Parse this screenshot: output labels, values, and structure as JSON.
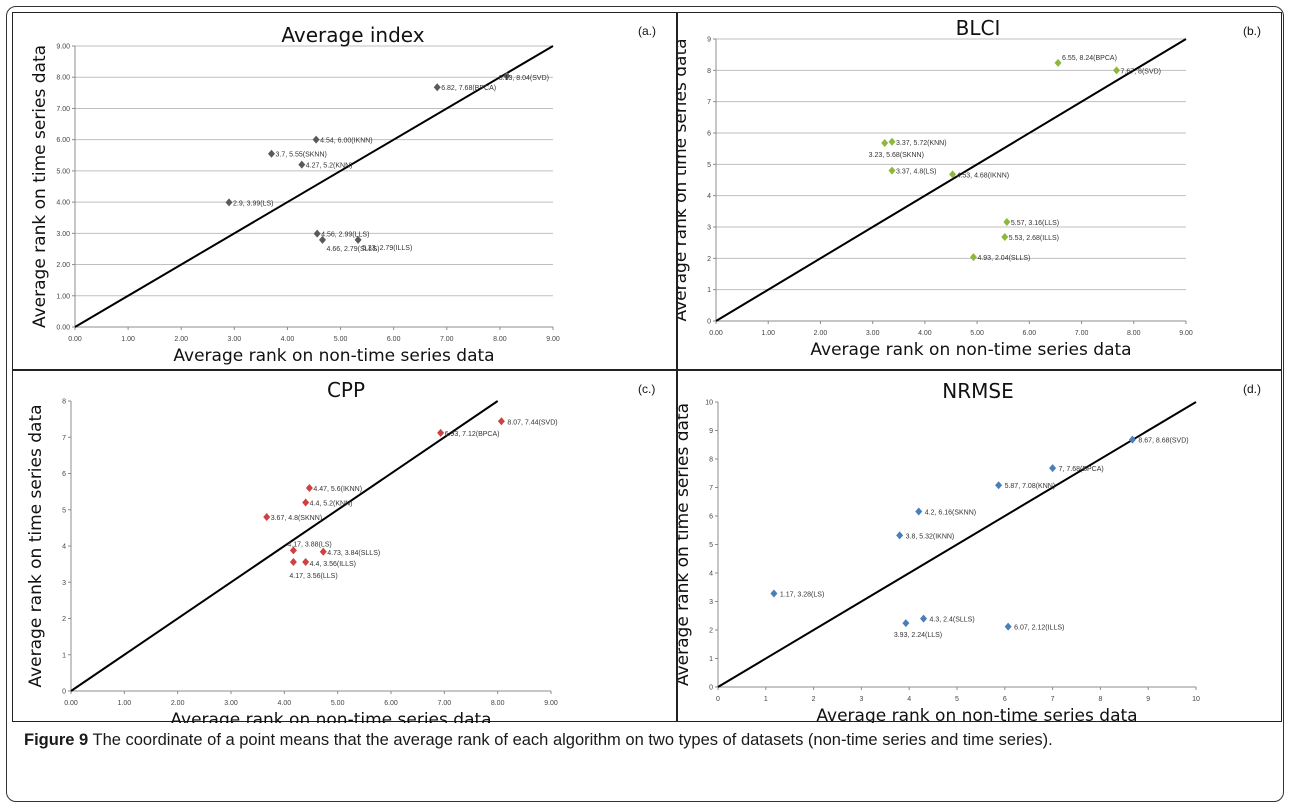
{
  "figure": {
    "caption_label": "Figure 9",
    "caption_text": "The coordinate of a point means that the average rank of each algorithm on two types of datasets (non-time series and time series)."
  },
  "colors": {
    "average_index": "#5a5a5a",
    "blci": "#8db83a",
    "cpp": "#d04040",
    "nrmse": "#4a7ebb",
    "diagonal": "#000000",
    "grid": "#bfbfbf"
  },
  "chart_data": [
    {
      "type": "scatter",
      "panel_tag": "(a.)",
      "title": "Average  index",
      "xlabel": "Average rank on non-time series data",
      "ylabel": "Average rank on time series data",
      "xlim": [
        0,
        9
      ],
      "ylim": [
        0,
        9
      ],
      "x_ticks": [
        "0.00",
        "1.00",
        "2.00",
        "3.00",
        "4.00",
        "5.00",
        "6.00",
        "7.00",
        "8.00",
        "9.00"
      ],
      "y_ticks": [
        "0.00",
        "1.00",
        "2.00",
        "3.00",
        "4.00",
        "5.00",
        "6.00",
        "7.00",
        "8.00",
        "9.00"
      ],
      "grid": "horizontal",
      "reference_line": "y = x",
      "points": [
        {
          "x": 8.13,
          "y": 8.04,
          "label": "8.13, 8.04(SVD)"
        },
        {
          "x": 6.82,
          "y": 7.68,
          "label": "6.82, 7.68(BPCA)"
        },
        {
          "x": 4.54,
          "y": 6.0,
          "label": "4.54, 6.00(IKNN)"
        },
        {
          "x": 3.7,
          "y": 5.55,
          "label": "3.7, 5.55(SKNN)"
        },
        {
          "x": 4.27,
          "y": 5.2,
          "label": "4.27, 5.2(KNN)"
        },
        {
          "x": 2.9,
          "y": 3.99,
          "label": "2.9, 3.99(LS)"
        },
        {
          "x": 4.56,
          "y": 2.99,
          "label": "4.56, 2.99(LLS)"
        },
        {
          "x": 5.33,
          "y": 2.79,
          "label": "5.33, 2.79(ILLS)"
        },
        {
          "x": 4.66,
          "y": 2.79,
          "label": "4.66, 2.79(SLLS)"
        }
      ]
    },
    {
      "type": "scatter",
      "panel_tag": "(b.)",
      "title": "BLCI",
      "xlabel": "Average rank on non-time series data",
      "ylabel": "Average rank on time series data",
      "xlim": [
        0,
        9
      ],
      "ylim": [
        0,
        9
      ],
      "x_ticks": [
        "0.00",
        "1.00",
        "2.00",
        "3.00",
        "4.00",
        "5.00",
        "6.00",
        "7.00",
        "8.00",
        "9.00"
      ],
      "y_ticks": [
        "0",
        "1",
        "2",
        "3",
        "4",
        "5",
        "6",
        "7",
        "8",
        "9"
      ],
      "grid": "horizontal",
      "reference_line": "y = x",
      "points": [
        {
          "x": 6.55,
          "y": 8.24,
          "label": "6.55, 8.24(BPCA)"
        },
        {
          "x": 7.67,
          "y": 8,
          "label": "7.67, 8(SVD)"
        },
        {
          "x": 3.37,
          "y": 5.72,
          "label": "3.37, 5.72(KNN)"
        },
        {
          "x": 3.23,
          "y": 5.68,
          "label": "3.23, 5.68(SKNN)"
        },
        {
          "x": 3.37,
          "y": 4.8,
          "label": "3.37, 4.8(LS)"
        },
        {
          "x": 4.53,
          "y": 4.68,
          "label": "4.53, 4.68(IKNN)"
        },
        {
          "x": 5.57,
          "y": 3.16,
          "label": "5.57, 3.16(LLS)"
        },
        {
          "x": 5.53,
          "y": 2.68,
          "label": "5.53, 2.68(ILLS)"
        },
        {
          "x": 4.93,
          "y": 2.04,
          "label": "4.93, 2.04(SLLS)"
        }
      ]
    },
    {
      "type": "scatter",
      "panel_tag": "(c.)",
      "title": "CPP",
      "xlabel": "Average rank on non-time series data",
      "ylabel": "Average rank on time series data",
      "xlim": [
        0,
        9
      ],
      "ylim": [
        0,
        8
      ],
      "x_ticks": [
        "0.00",
        "1.00",
        "2.00",
        "3.00",
        "4.00",
        "5.00",
        "6.00",
        "7.00",
        "8.00",
        "9.00"
      ],
      "y_ticks": [
        "0",
        "1",
        "2",
        "3",
        "4",
        "5",
        "6",
        "7",
        "8"
      ],
      "grid": "none",
      "reference_line": "y = x",
      "points": [
        {
          "x": 8.07,
          "y": 7.44,
          "label": "8.07, 7.44(SVD)"
        },
        {
          "x": 6.93,
          "y": 7.12,
          "label": "6.93, 7.12(BPCA)"
        },
        {
          "x": 4.47,
          "y": 5.6,
          "label": "4.47, 5.6(IKNN)"
        },
        {
          "x": 4.4,
          "y": 5.2,
          "label": "4.4, 5.2(KNN)"
        },
        {
          "x": 3.67,
          "y": 4.8,
          "label": "3.67, 4.8(SKNN)"
        },
        {
          "x": 4.17,
          "y": 3.88,
          "label": "4.17, 3.88(LS)"
        },
        {
          "x": 4.73,
          "y": 3.84,
          "label": "4.73, 3.84(SLLS)"
        },
        {
          "x": 4.4,
          "y": 3.56,
          "label": "4.4, 3.56(ILLS)"
        },
        {
          "x": 4.17,
          "y": 3.56,
          "label": "4.17, 3.56(LLS)"
        }
      ]
    },
    {
      "type": "scatter",
      "panel_tag": "(d.)",
      "title": "NRMSE",
      "xlabel": "Average rank on non-time series data",
      "ylabel": "Average rank on time series data",
      "xlim": [
        0,
        10
      ],
      "ylim": [
        0,
        10
      ],
      "x_ticks": [
        "0",
        "1",
        "2",
        "3",
        "4",
        "5",
        "6",
        "7",
        "8",
        "9",
        "10"
      ],
      "y_ticks": [
        "0",
        "1",
        "2",
        "3",
        "4",
        "5",
        "6",
        "7",
        "8",
        "9",
        "10"
      ],
      "grid": "none",
      "reference_line": "y = x",
      "points": [
        {
          "x": 8.67,
          "y": 8.68,
          "label": "8.67, 8.68(SVD)"
        },
        {
          "x": 7,
          "y": 7.68,
          "label": "7, 7.68(BPCA)"
        },
        {
          "x": 5.87,
          "y": 7.08,
          "label": "5.87, 7.08(KNN)"
        },
        {
          "x": 4.2,
          "y": 6.16,
          "label": "4.2, 6.16(SKNN)"
        },
        {
          "x": 3.8,
          "y": 5.32,
          "label": "3.8, 5.32(IKNN)"
        },
        {
          "x": 1.17,
          "y": 3.28,
          "label": "1.17, 3.28(LS)"
        },
        {
          "x": 4.3,
          "y": 2.4,
          "label": "4.3, 2.4(SLLS)"
        },
        {
          "x": 3.93,
          "y": 2.24,
          "label": "3.93, 2.24(LLS)"
        },
        {
          "x": 6.07,
          "y": 2.12,
          "label": "6.07, 2.12(ILLS)"
        }
      ]
    }
  ]
}
